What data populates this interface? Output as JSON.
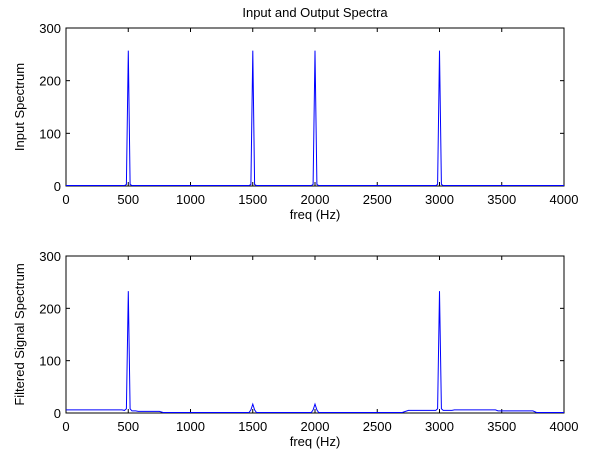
{
  "figure_title": "Input and Output Spectra",
  "colors": {
    "line": "#0000ff",
    "axes": "#000000",
    "background": "#ffffff"
  },
  "chart_data": [
    {
      "type": "line",
      "title": "Input and Output Spectra",
      "xlabel": "freq (Hz)",
      "ylabel": "Input Spectrum",
      "xlim": [
        0,
        4000
      ],
      "ylim": [
        0,
        300
      ],
      "xticks": [
        0,
        500,
        1000,
        1500,
        2000,
        2500,
        3000,
        3500,
        4000
      ],
      "yticks": [
        0,
        100,
        200,
        300
      ],
      "grid": false,
      "series": [
        {
          "x": [
            0,
            470,
            485,
            500,
            515,
            530,
            1470,
            1485,
            1500,
            1515,
            1530,
            1970,
            1985,
            2000,
            2015,
            2030,
            2970,
            2985,
            3000,
            3015,
            3030,
            4000
          ],
          "y": [
            1,
            1,
            3,
            257,
            3,
            1,
            1,
            3,
            257,
            3,
            1,
            1,
            3,
            257,
            3,
            1,
            1,
            3,
            257,
            3,
            1,
            1
          ]
        }
      ]
    },
    {
      "type": "line",
      "title": "",
      "xlabel": "freq (Hz)",
      "ylabel": "Filtered Signal Spectrum",
      "xlim": [
        0,
        4000
      ],
      "ylim": [
        0,
        300
      ],
      "xticks": [
        0,
        500,
        1000,
        1500,
        2000,
        2500,
        3000,
        3500,
        4000
      ],
      "yticks": [
        0,
        100,
        200,
        300
      ],
      "grid": false,
      "series": [
        {
          "x": [
            0,
            450,
            470,
            485,
            500,
            515,
            530,
            560,
            580,
            750,
            780,
            1470,
            1485,
            1500,
            1515,
            1530,
            1970,
            1985,
            2000,
            2015,
            2030,
            2700,
            2750,
            2970,
            2985,
            3000,
            3015,
            3030,
            3100,
            3120,
            3450,
            3470,
            3750,
            3780,
            4000
          ],
          "y": [
            6,
            6,
            5,
            8,
            233,
            8,
            4,
            4,
            3,
            3,
            1,
            1,
            6,
            17,
            6,
            1,
            1,
            6,
            17,
            6,
            1,
            1,
            5,
            5,
            8,
            233,
            8,
            5,
            5,
            6,
            6,
            4,
            4,
            1,
            1
          ]
        }
      ]
    }
  ]
}
